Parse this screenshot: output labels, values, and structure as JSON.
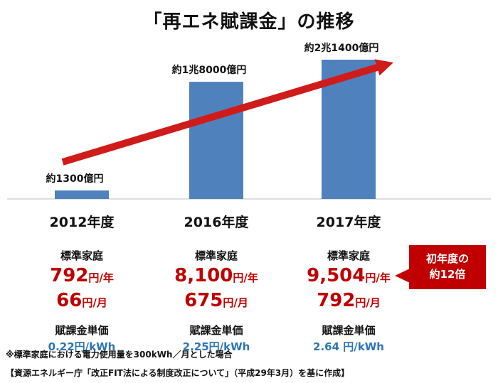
{
  "title": "「再エネ賦課金」の推移",
  "chart_data": {
    "type": "bar",
    "title": "「再エネ賦課金」の推移",
    "categories": [
      "2012年度",
      "2016年度",
      "2017年度"
    ],
    "values_oku_yen": [
      1300,
      18000,
      21400
    ],
    "data_labels": [
      "約1300億円",
      "約1兆8000億円",
      "約2兆1400億円"
    ],
    "trend_arrow": true,
    "colors": {
      "bar": "#4f81bd",
      "arrow": "#d01b1b"
    }
  },
  "columns": [
    {
      "year": "2012年度",
      "std_label": "標準家庭",
      "yearly_num": "792",
      "yearly_unit": "円/年",
      "monthly_num": "66",
      "monthly_unit": "円/月",
      "unit_label": "賦課金単価",
      "unit_price": "0.22円/kWh"
    },
    {
      "year": "2016年度",
      "std_label": "標準家庭",
      "yearly_num": "8,100",
      "yearly_unit": "円/年",
      "monthly_num": "675",
      "monthly_unit": "円/月",
      "unit_label": "賦課金単価",
      "unit_price": "2.25円/kWh"
    },
    {
      "year": "2017年度",
      "std_label": "標準家庭",
      "yearly_num": "9,504",
      "yearly_unit": "円/年",
      "monthly_num": "792",
      "monthly_unit": "円/月",
      "unit_label": "賦課金単価",
      "unit_price": "2.64 円/kWh"
    }
  ],
  "callout": {
    "line1": "初年度の",
    "line2": "約12倍"
  },
  "notes": {
    "footnote": "※標準家庭における電力使用量を300kWh／月とした場合",
    "source": "【資源エネルギー庁「改正FIT法による制度改正について」（平成29年3月）を基に作成】"
  },
  "colors": {
    "accent_red": "#c00000",
    "unit_blue": "#2e75b6"
  }
}
